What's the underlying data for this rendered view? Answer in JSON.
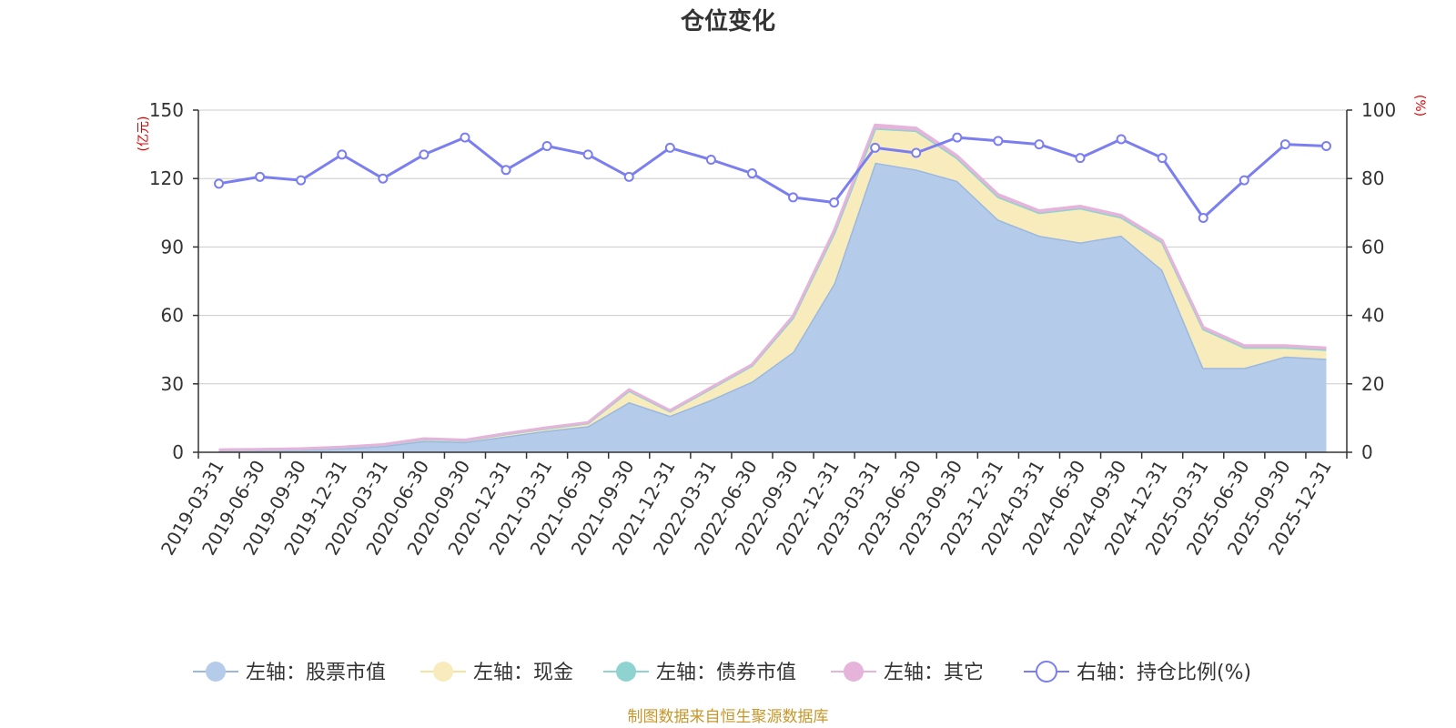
{
  "chart_data": {
    "type": "area",
    "title": "仓位变化",
    "left_axis_unit": "(亿元)",
    "right_axis_unit": "(%)",
    "left_ylim": [
      0,
      150
    ],
    "left_ticks": [
      0,
      30,
      60,
      90,
      120,
      150
    ],
    "right_ylim": [
      0,
      100
    ],
    "right_ticks": [
      0,
      20,
      40,
      60,
      80,
      100
    ],
    "categories": [
      "2019-03-31",
      "2019-06-30",
      "2019-09-30",
      "2019-12-31",
      "2020-03-31",
      "2020-06-30",
      "2020-09-30",
      "2020-12-31",
      "2021-03-31",
      "2021-06-30",
      "2021-09-30",
      "2021-12-31",
      "2022-03-31",
      "2022-06-30",
      "2022-09-30",
      "2022-12-31",
      "2023-03-31",
      "2023-06-30",
      "2023-09-30",
      "2023-12-31",
      "2024-03-31",
      "2024-06-30",
      "2024-09-30",
      "2024-12-31",
      "2025-03-31",
      "2025-06-30",
      "2025-09-30",
      "2025-12-31"
    ],
    "series": [
      {
        "name": "左轴：股票市值",
        "axis": "left",
        "stack": true,
        "color": "#9bb8e0",
        "fill": "#b5cbea",
        "values": [
          0.8,
          1.0,
          1.2,
          1.8,
          2.8,
          5.0,
          4.5,
          7.0,
          9.5,
          11.5,
          22.0,
          16.0,
          23.0,
          31.0,
          44.0,
          74.0,
          127.0,
          124.0,
          119.0,
          102.0,
          95.0,
          92.0,
          95.0,
          80.0,
          37.0,
          37.0,
          42.0,
          41.0
        ]
      },
      {
        "name": "左轴：现金",
        "axis": "left",
        "stack": true,
        "color": "#f5e3a0",
        "fill": "#f8ecbd",
        "values": [
          0.2,
          0.2,
          0.3,
          0.4,
          0.5,
          0.8,
          0.7,
          1.0,
          1.0,
          1.3,
          5.0,
          2.0,
          5.0,
          7.0,
          15.0,
          22.0,
          15.0,
          17.0,
          10.0,
          10.0,
          10.0,
          15.0,
          8.0,
          12.0,
          17.0,
          9.0,
          4.0,
          4.0
        ]
      },
      {
        "name": "左轴：债券市值",
        "axis": "left",
        "stack": true,
        "color": "#8fd3d0",
        "fill": "#8fd3d0",
        "values": [
          0,
          0,
          0,
          0,
          0,
          0,
          0,
          0,
          0,
          0,
          0,
          0,
          0,
          0,
          0,
          0,
          0,
          0,
          0,
          0,
          0,
          0,
          0,
          0,
          0,
          0,
          0,
          0
        ]
      },
      {
        "name": "左轴：其它",
        "axis": "left",
        "stack": true,
        "color": "#e6b3da",
        "fill": "#e6b3da",
        "values": [
          0.1,
          0.1,
          0.1,
          0.1,
          0.1,
          0.2,
          0.2,
          0.2,
          0.3,
          0.3,
          0.5,
          0.3,
          0.4,
          0.5,
          0.8,
          1.2,
          1.5,
          1.2,
          1.0,
          1.0,
          0.9,
          0.9,
          0.9,
          0.9,
          0.8,
          0.8,
          0.8,
          0.8
        ]
      },
      {
        "name": "右轴：持仓比例(%)",
        "axis": "right",
        "stack": false,
        "color": "#7b7ef0",
        "values": [
          78.5,
          80.5,
          79.5,
          87.0,
          80.0,
          87.0,
          92.0,
          82.5,
          89.5,
          87.0,
          80.5,
          89.0,
          85.5,
          81.5,
          74.5,
          73.0,
          89.0,
          87.5,
          92.0,
          91.0,
          90.0,
          86.0,
          91.5,
          86.0,
          68.5,
          79.5,
          90.0,
          89.5
        ]
      }
    ],
    "source_note": "制图数据来自恒生聚源数据库"
  }
}
